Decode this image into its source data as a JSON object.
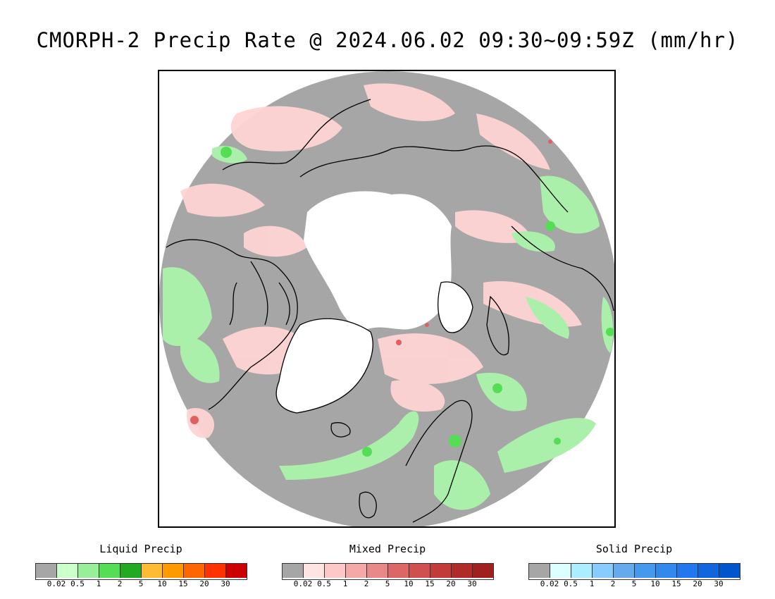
{
  "title": "CMORPH-2 Precip Rate @ 2024.06.02 09:30~09:59Z (mm/hr)",
  "map": {
    "projection": "north-polar-stereographic",
    "colors": {
      "no_precip": "#a6a6a6",
      "no_data": "#ffffff",
      "coastline": "#000000"
    }
  },
  "legends": [
    {
      "id": "liquid",
      "title": "Liquid Precip",
      "colors": [
        "#a6a6a6",
        "#ccffcc",
        "#99ee99",
        "#55dd55",
        "#22aa22",
        "#ffbb33",
        "#ff9900",
        "#ff6600",
        "#ff3300",
        "#cc0000"
      ],
      "ticks": [
        "0.02",
        "0.5",
        "1",
        "2",
        "5",
        "10",
        "15",
        "20",
        "30"
      ]
    },
    {
      "id": "mixed",
      "title": "Mixed Precip",
      "colors": [
        "#a6a6a6",
        "#ffe4e4",
        "#ffc8c8",
        "#f4a8a8",
        "#e88888",
        "#dd6666",
        "#d05050",
        "#c33a3a",
        "#b02a2a",
        "#a02020"
      ],
      "ticks": [
        "0.02",
        "0.5",
        "1",
        "2",
        "5",
        "10",
        "15",
        "20",
        "30"
      ]
    },
    {
      "id": "solid",
      "title": "Solid Precip",
      "colors": [
        "#a6a6a6",
        "#ddffff",
        "#aaeeff",
        "#88ccff",
        "#66aaee",
        "#4499ee",
        "#3388ee",
        "#2277ee",
        "#1166dd",
        "#0055cc"
      ],
      "ticks": [
        "0.02",
        "0.5",
        "1",
        "2",
        "5",
        "10",
        "15",
        "20",
        "30"
      ]
    }
  ]
}
